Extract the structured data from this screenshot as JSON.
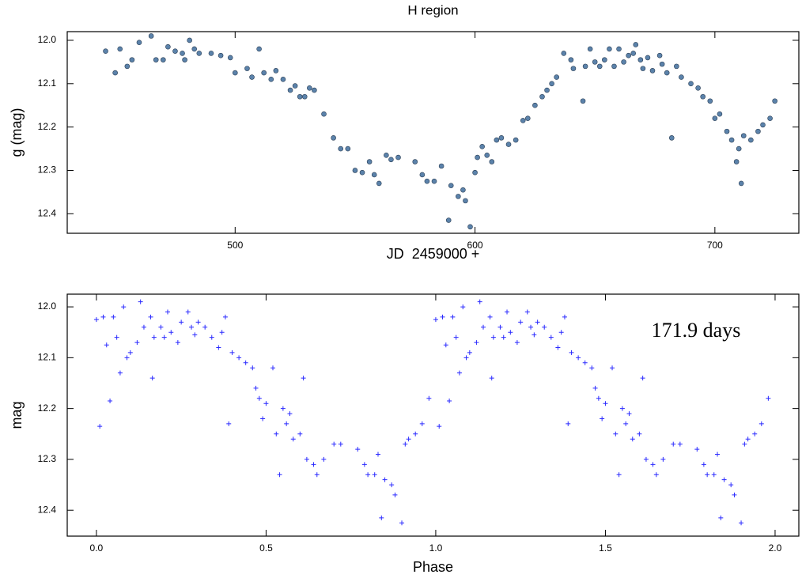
{
  "chart_data": [
    {
      "type": "scatter",
      "title": "H region",
      "x_label": "JD  2459000 +",
      "y_label": "g (mag)",
      "xlim": [
        430,
        735
      ],
      "ylim": [
        11.98,
        12.445
      ],
      "y_inverted": true,
      "xticks": [
        500,
        600,
        700
      ],
      "yticks": [
        {
          "value": 12,
          "label": "12.0"
        },
        12.1,
        12.2,
        12.3,
        12.4
      ],
      "series": [
        {
          "color": "#5b82aa",
          "marker": "circle",
          "x": [
            446,
            450,
            452,
            455,
            457,
            460,
            465,
            467,
            470,
            472,
            475,
            478,
            479,
            481,
            483,
            485,
            490,
            494,
            498,
            500,
            505,
            507,
            510,
            512,
            515,
            517,
            520,
            523,
            525,
            527,
            529,
            531,
            533,
            537,
            541,
            544,
            547,
            550,
            553,
            556,
            558,
            560,
            563,
            565,
            568,
            575,
            578,
            580,
            583,
            586,
            589,
            590,
            593,
            595,
            596,
            598,
            600,
            601,
            603,
            605,
            607,
            609,
            611,
            614,
            617,
            620,
            622,
            625,
            628,
            630,
            632,
            634,
            637,
            640,
            641,
            645,
            646,
            648,
            650,
            652,
            654,
            656,
            658,
            660,
            662,
            664,
            666,
            667,
            669,
            670,
            672,
            674,
            677,
            678,
            680,
            682,
            684,
            686,
            690,
            693,
            695,
            698,
            700,
            702,
            705,
            707,
            709,
            710,
            711,
            712,
            715,
            718,
            720,
            723,
            725
          ],
          "values": [
            12.025,
            12.075,
            12.02,
            12.06,
            12.045,
            12.005,
            11.99,
            12.045,
            12.045,
            12.015,
            12.025,
            12.03,
            12.045,
            12.0,
            12.02,
            12.03,
            12.03,
            12.035,
            12.04,
            12.075,
            12.065,
            12.085,
            12.02,
            12.075,
            12.09,
            12.07,
            12.09,
            12.115,
            12.105,
            12.13,
            12.13,
            12.11,
            12.115,
            12.17,
            12.225,
            12.25,
            12.25,
            12.3,
            12.305,
            12.28,
            12.31,
            12.33,
            12.265,
            12.275,
            12.27,
            12.28,
            12.31,
            12.325,
            12.325,
            12.29,
            12.415,
            12.335,
            12.36,
            12.345,
            12.37,
            12.43,
            12.305,
            12.27,
            12.245,
            12.265,
            12.28,
            12.23,
            12.225,
            12.24,
            12.23,
            12.185,
            12.18,
            12.15,
            12.13,
            12.115,
            12.1,
            12.085,
            12.03,
            12.045,
            12.065,
            12.14,
            12.06,
            12.02,
            12.05,
            12.06,
            12.045,
            12.02,
            12.06,
            12.02,
            12.05,
            12.035,
            12.03,
            12.01,
            12.045,
            12.065,
            12.04,
            12.07,
            12.035,
            12.055,
            12.075,
            12.225,
            12.06,
            12.085,
            12.1,
            12.11,
            12.13,
            12.14,
            12.18,
            12.17,
            12.21,
            12.23,
            12.28,
            12.25,
            12.33,
            12.22,
            12.23,
            12.21,
            12.195,
            12.18,
            12.14
          ]
        }
      ]
    },
    {
      "type": "scatter",
      "x_label": "Phase",
      "y_label": "mag",
      "annotation": "171.9 days",
      "xlim": [
        -0.086,
        2.07
      ],
      "ylim": [
        11.975,
        12.451
      ],
      "y_inverted": true,
      "xticks": [
        {
          "value": 0,
          "label": "0.0"
        },
        0.5,
        {
          "value": 1,
          "label": "1.0"
        },
        1.5,
        {
          "value": 2,
          "label": "2.0"
        }
      ],
      "yticks": [
        {
          "value": 12,
          "label": "12.0"
        },
        12.1,
        12.2,
        12.3,
        12.4
      ],
      "series": [
        {
          "color": "#2a2aff",
          "marker": "plus",
          "x": [
            0.0,
            0.01,
            0.02,
            0.03,
            0.04,
            0.05,
            0.06,
            0.07,
            0.08,
            0.09,
            0.1,
            0.12,
            0.13,
            0.14,
            0.16,
            0.17,
            0.165,
            0.19,
            0.2,
            0.21,
            0.22,
            0.24,
            0.25,
            0.27,
            0.28,
            0.29,
            0.3,
            0.32,
            0.34,
            0.36,
            0.37,
            0.38,
            0.39,
            0.4,
            0.42,
            0.44,
            0.46,
            0.47,
            0.48,
            0.49,
            0.5,
            0.52,
            0.53,
            0.54,
            0.55,
            0.56,
            0.57,
            0.58,
            0.6,
            0.61,
            0.62,
            0.64,
            0.65,
            0.67,
            0.7,
            0.72,
            0.77,
            0.79,
            0.8,
            0.82,
            0.83,
            0.84,
            0.85,
            0.87,
            0.88,
            0.9,
            0.91,
            0.92,
            0.94,
            0.96,
            0.98,
            1.0,
            1.01,
            1.02,
            1.03,
            1.04,
            1.05,
            1.06,
            1.07,
            1.08,
            1.09,
            1.1,
            1.12,
            1.13,
            1.14,
            1.16,
            1.17,
            1.165,
            1.19,
            1.2,
            1.21,
            1.22,
            1.24,
            1.25,
            1.27,
            1.28,
            1.29,
            1.3,
            1.32,
            1.34,
            1.36,
            1.37,
            1.38,
            1.39,
            1.4,
            1.42,
            1.44,
            1.46,
            1.47,
            1.48,
            1.49,
            1.5,
            1.52,
            1.53,
            1.54,
            1.55,
            1.56,
            1.57,
            1.58,
            1.6,
            1.61,
            1.62,
            1.64,
            1.65,
            1.67,
            1.7,
            1.72,
            1.77,
            1.79,
            1.8,
            1.82,
            1.83,
            1.84,
            1.85,
            1.87,
            1.88,
            1.9,
            1.91,
            1.92,
            1.94,
            1.96,
            1.98
          ],
          "values": [
            12.025,
            12.235,
            12.02,
            12.075,
            12.185,
            12.02,
            12.06,
            12.13,
            12.0,
            12.1,
            12.09,
            12.07,
            11.99,
            12.04,
            12.02,
            12.06,
            12.14,
            12.04,
            12.06,
            12.01,
            12.05,
            12.07,
            12.03,
            12.01,
            12.04,
            12.055,
            12.03,
            12.04,
            12.06,
            12.08,
            12.05,
            12.02,
            12.23,
            12.09,
            12.1,
            12.11,
            12.12,
            12.16,
            12.18,
            12.22,
            12.19,
            12.12,
            12.25,
            12.33,
            12.2,
            12.23,
            12.21,
            12.26,
            12.25,
            12.14,
            12.3,
            12.31,
            12.33,
            12.3,
            12.27,
            12.27,
            12.28,
            12.31,
            12.33,
            12.33,
            12.29,
            12.415,
            12.34,
            12.35,
            12.37,
            12.425,
            12.27,
            12.26,
            12.25,
            12.23,
            12.18,
            12.025,
            12.235,
            12.02,
            12.075,
            12.185,
            12.02,
            12.06,
            12.13,
            12.0,
            12.1,
            12.09,
            12.07,
            11.99,
            12.04,
            12.02,
            12.06,
            12.14,
            12.04,
            12.06,
            12.01,
            12.05,
            12.07,
            12.03,
            12.01,
            12.04,
            12.055,
            12.03,
            12.04,
            12.06,
            12.08,
            12.05,
            12.02,
            12.23,
            12.09,
            12.1,
            12.11,
            12.12,
            12.16,
            12.18,
            12.22,
            12.19,
            12.12,
            12.25,
            12.33,
            12.2,
            12.23,
            12.21,
            12.26,
            12.25,
            12.14,
            12.3,
            12.31,
            12.33,
            12.3,
            12.27,
            12.27,
            12.28,
            12.31,
            12.33,
            12.33,
            12.29,
            12.415,
            12.34,
            12.35,
            12.37,
            12.425,
            12.27,
            12.26,
            12.25,
            12.23,
            12.18
          ]
        }
      ]
    }
  ]
}
